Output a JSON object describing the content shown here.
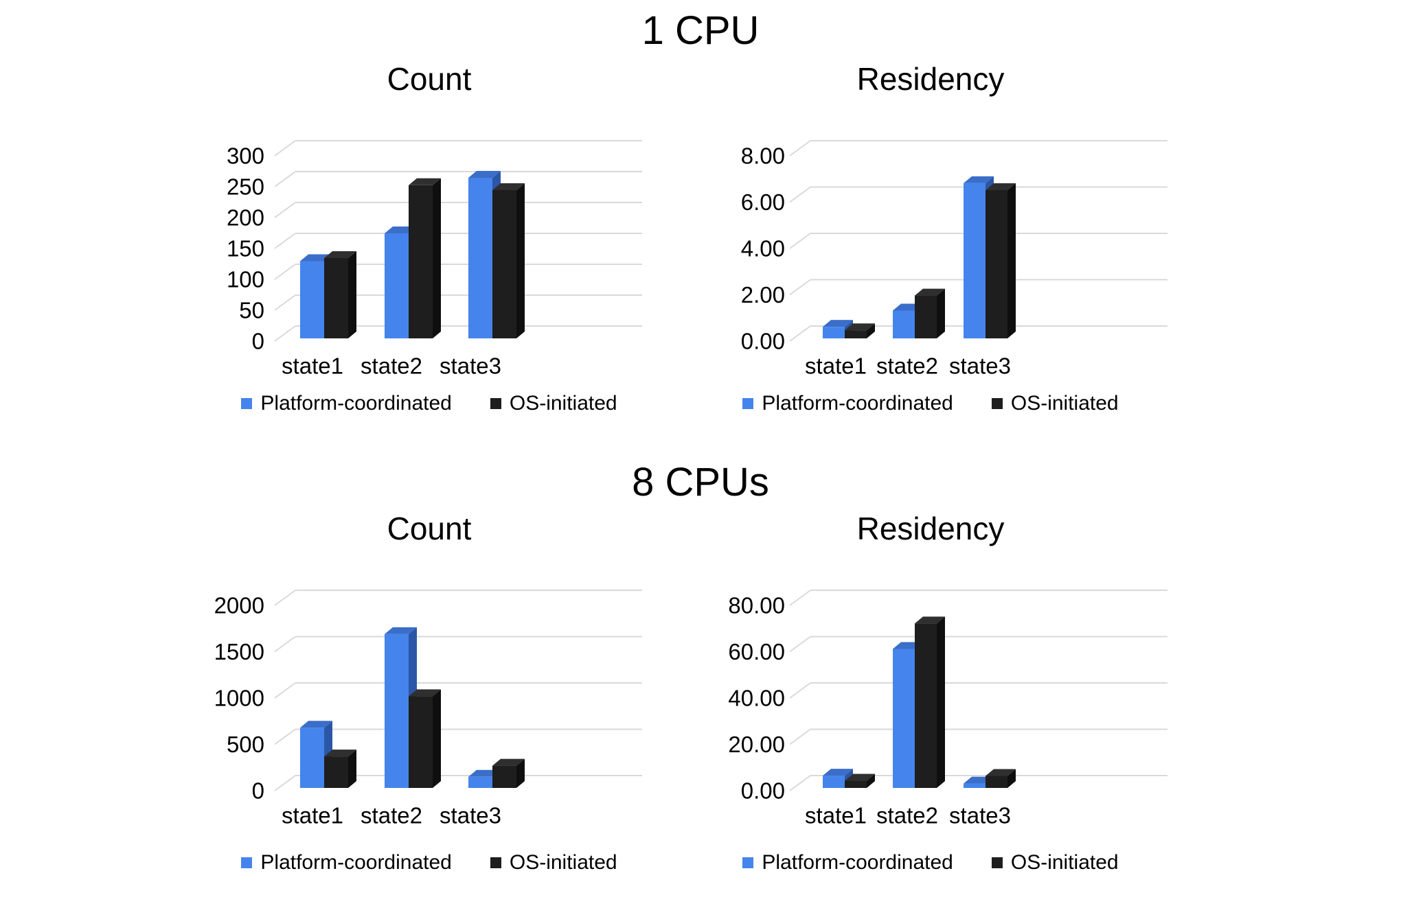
{
  "sections": [
    {
      "title": "1 CPU"
    },
    {
      "title": "8 CPUs"
    }
  ],
  "colors": {
    "platform": {
      "front": "#4584EC",
      "top": "#3A6EC9",
      "side": "#2C57A7"
    },
    "os": {
      "front": "#1E1E1E",
      "top": "#2F2F2F",
      "side": "#0F0F0F"
    },
    "gridline": "#D9D9D9",
    "text": "#000000",
    "background": "#FFFFFF"
  },
  "chart_data": [
    {
      "type": "bar",
      "style": "3d-column",
      "section": "1 CPU",
      "title": "Count",
      "categories": [
        "state1",
        "state2",
        "state3"
      ],
      "series": [
        {
          "name": "Platform-coordinated",
          "values": [
            125,
            170,
            260
          ]
        },
        {
          "name": "OS-initiated",
          "values": [
            130,
            248,
            240
          ]
        }
      ],
      "ylim": [
        0,
        300
      ],
      "y_tick_labels": [
        "300",
        "250",
        "200",
        "150",
        "100",
        "50",
        "0"
      ],
      "grid": true,
      "legend_position": "bottom"
    },
    {
      "type": "bar",
      "style": "3d-column",
      "section": "1 CPU",
      "title": "Residency",
      "categories": [
        "state1",
        "state2",
        "state3"
      ],
      "series": [
        {
          "name": "Platform-coordinated",
          "values": [
            0.5,
            1.2,
            6.7
          ]
        },
        {
          "name": "OS-initiated",
          "values": [
            0.35,
            1.85,
            6.4
          ]
        }
      ],
      "ylim": [
        0,
        8
      ],
      "y_tick_labels": [
        "8.00",
        "6.00",
        "4.00",
        "2.00",
        "0.00"
      ],
      "grid": true,
      "legend_position": "bottom"
    },
    {
      "type": "bar",
      "style": "3d-column",
      "section": "8 CPUs",
      "title": "Count",
      "categories": [
        "state1",
        "state2",
        "state3"
      ],
      "series": [
        {
          "name": "Platform-coordinated",
          "values": [
            650,
            1660,
            120
          ]
        },
        {
          "name": "OS-initiated",
          "values": [
            340,
            990,
            240
          ]
        }
      ],
      "ylim": [
        0,
        2000
      ],
      "y_tick_labels": [
        "2000",
        "1500",
        "1000",
        "500",
        "0"
      ],
      "grid": true,
      "legend_position": "bottom"
    },
    {
      "type": "bar",
      "style": "3d-column",
      "section": "8 CPUs",
      "title": "Residency",
      "categories": [
        "state1",
        "state2",
        "state3"
      ],
      "series": [
        {
          "name": "Platform-coordinated",
          "values": [
            5.3,
            60,
            1.9
          ]
        },
        {
          "name": "OS-initiated",
          "values": [
            3.1,
            71,
            5.2
          ]
        }
      ],
      "ylim": [
        0,
        80
      ],
      "y_tick_labels": [
        "80.00",
        "60.00",
        "40.00",
        "20.00",
        "0.00"
      ],
      "grid": true,
      "legend_position": "bottom"
    }
  ]
}
